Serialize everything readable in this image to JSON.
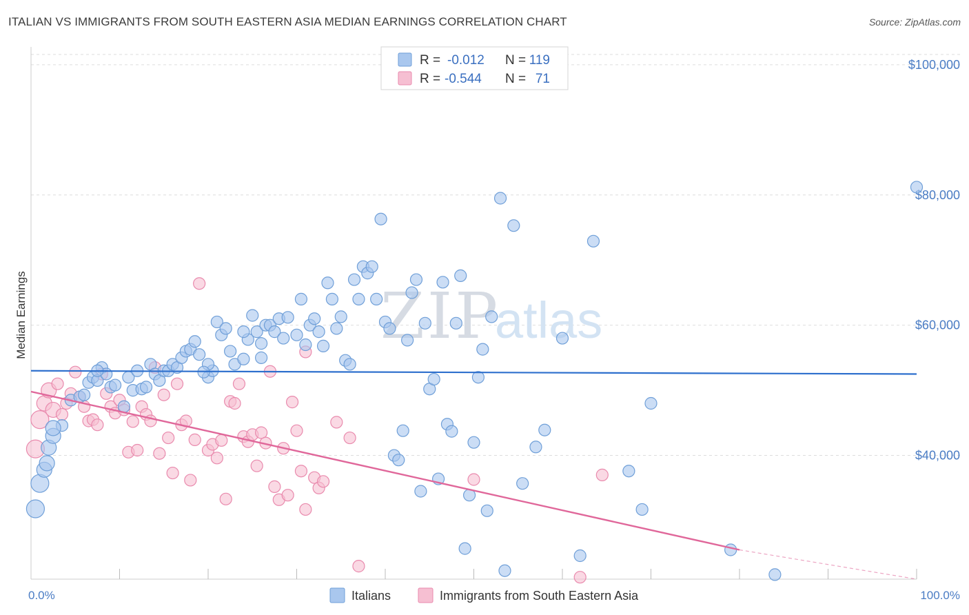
{
  "title": "ITALIAN VS IMMIGRANTS FROM SOUTH EASTERN ASIA MEDIAN EARNINGS CORRELATION CHART",
  "source": "Source: ZipAtlas.com",
  "watermark": {
    "zip": "ZIP",
    "atlas": "atlas"
  },
  "legend_top": {
    "row1": {
      "r_label": "R =",
      "r_value": "-0.012",
      "n_label": "N =",
      "n_value": "119"
    },
    "row2": {
      "r_label": "R =",
      "r_value": "-0.544",
      "n_label": "N =",
      "n_value": "71"
    }
  },
  "colors": {
    "blue_fill": "#a9c7ee",
    "blue_stroke": "#6f9fd8",
    "blue_line": "#2d6fcd",
    "pink_fill": "#f6bfd2",
    "pink_stroke": "#e98aad",
    "pink_line": "#e0679a",
    "axis_text": "#4a7cc4",
    "grid": "#dddddd"
  },
  "chart_data": {
    "type": "scatter",
    "title": "ITALIAN VS IMMIGRANTS FROM SOUTH EASTERN ASIA MEDIAN EARNINGS CORRELATION CHART",
    "xlabel": "",
    "ylabel": "Median Earnings",
    "xlim": [
      0,
      100
    ],
    "ylim": [
      21000,
      102000
    ],
    "x_tick_labels": [
      "0.0%",
      "100.0%"
    ],
    "y_ticks": [
      40000,
      60000,
      80000,
      100000
    ],
    "y_tick_labels": [
      "$40,000",
      "$60,000",
      "$80,000",
      "$100,000"
    ],
    "grid": true,
    "legend_placement": "top-center",
    "series": [
      {
        "name": "Italians",
        "r": -0.012,
        "n": 119,
        "trend": {
          "x0": 0,
          "y0": 53000,
          "x1": 100,
          "y1": 52500
        },
        "points": [
          [
            0.5,
            31800
          ],
          [
            1.0,
            35700
          ],
          [
            1.5,
            37800
          ],
          [
            1.8,
            38800
          ],
          [
            2.0,
            41200
          ],
          [
            2.5,
            43000
          ],
          [
            3.5,
            44600
          ],
          [
            4.5,
            48500
          ],
          [
            5.5,
            49000
          ],
          [
            6.0,
            49300
          ],
          [
            6.5,
            51200
          ],
          [
            7.0,
            52000
          ],
          [
            7.5,
            51500
          ],
          [
            8.0,
            53500
          ],
          [
            8.5,
            52500
          ],
          [
            9.0,
            50500
          ],
          [
            9.5,
            50800
          ],
          [
            10.5,
            47500
          ],
          [
            11.5,
            50000
          ],
          [
            11.0,
            52000
          ],
          [
            12.5,
            50200
          ],
          [
            13.0,
            50500
          ],
          [
            13.5,
            54000
          ],
          [
            14.0,
            52500
          ],
          [
            14.5,
            51500
          ],
          [
            15.0,
            53000
          ],
          [
            15.5,
            53000
          ],
          [
            16.0,
            54000
          ],
          [
            16.5,
            53500
          ],
          [
            17.0,
            55000
          ],
          [
            17.5,
            56000
          ],
          [
            18.0,
            56300
          ],
          [
            18.5,
            57500
          ],
          [
            19.0,
            55500
          ],
          [
            20.0,
            52000
          ],
          [
            20.5,
            53000
          ],
          [
            20.0,
            54000
          ],
          [
            21.0,
            60500
          ],
          [
            21.5,
            58500
          ],
          [
            22.0,
            59500
          ],
          [
            22.5,
            56000
          ],
          [
            23.0,
            54000
          ],
          [
            24.0,
            54800
          ],
          [
            24.5,
            57800
          ],
          [
            24.0,
            59000
          ],
          [
            25.0,
            61500
          ],
          [
            25.5,
            59000
          ],
          [
            26.0,
            57200
          ],
          [
            26.5,
            60000
          ],
          [
            27.0,
            60000
          ],
          [
            27.5,
            59000
          ],
          [
            28.0,
            61000
          ],
          [
            28.5,
            58000
          ],
          [
            29.0,
            61200
          ],
          [
            30.0,
            58500
          ],
          [
            30.5,
            64000
          ],
          [
            31.0,
            57000
          ],
          [
            31.5,
            60000
          ],
          [
            32.0,
            61000
          ],
          [
            32.5,
            59000
          ],
          [
            33.0,
            56800
          ],
          [
            33.5,
            66500
          ],
          [
            34.0,
            64000
          ],
          [
            34.5,
            59500
          ],
          [
            35.0,
            61300
          ],
          [
            35.5,
            54600
          ],
          [
            36.0,
            54000
          ],
          [
            36.5,
            67000
          ],
          [
            37.0,
            64000
          ],
          [
            37.5,
            69000
          ],
          [
            38.0,
            68000
          ],
          [
            38.5,
            69000
          ],
          [
            39.0,
            64000
          ],
          [
            39.5,
            76300
          ],
          [
            40.0,
            60500
          ],
          [
            40.5,
            59500
          ],
          [
            41.0,
            40000
          ],
          [
            41.5,
            39300
          ],
          [
            42.0,
            43800
          ],
          [
            42.5,
            57700
          ],
          [
            43.0,
            65000
          ],
          [
            43.5,
            67000
          ],
          [
            44.0,
            34500
          ],
          [
            44.5,
            60300
          ],
          [
            45.0,
            50200
          ],
          [
            45.5,
            51700
          ],
          [
            46.0,
            36400
          ],
          [
            46.5,
            66600
          ],
          [
            47.0,
            44800
          ],
          [
            47.5,
            43700
          ],
          [
            48.0,
            60300
          ],
          [
            48.5,
            67600
          ],
          [
            49.0,
            25700
          ],
          [
            49.5,
            33900
          ],
          [
            50.0,
            42000
          ],
          [
            50.5,
            52000
          ],
          [
            51.0,
            56300
          ],
          [
            51.5,
            31500
          ],
          [
            52.0,
            61300
          ],
          [
            53.0,
            79500
          ],
          [
            53.5,
            22300
          ],
          [
            54.5,
            75300
          ],
          [
            55.5,
            35700
          ],
          [
            57.0,
            41300
          ],
          [
            58.0,
            43900
          ],
          [
            60.0,
            58000
          ],
          [
            62.0,
            24600
          ],
          [
            63.5,
            72900
          ],
          [
            67.5,
            37600
          ],
          [
            69.0,
            31700
          ],
          [
            70.0,
            48000
          ],
          [
            79.0,
            25500
          ],
          [
            84.0,
            21700
          ],
          [
            100.0,
            81200
          ],
          [
            2.5,
            44200
          ],
          [
            7.5,
            53000
          ],
          [
            12.0,
            53000
          ],
          [
            19.5,
            52800
          ],
          [
            26.0,
            55000
          ]
        ]
      },
      {
        "name": "Immigrants from South Eastern Asia",
        "r": -0.544,
        "n": 71,
        "trend": {
          "x0": 0,
          "y0": 49800,
          "x1": 80,
          "y1": 25500,
          "dash_to_x": 100,
          "dash_to_y": 21000
        },
        "points": [
          [
            0.5,
            41000
          ],
          [
            1.0,
            45500
          ],
          [
            1.5,
            48000
          ],
          [
            2.0,
            50000
          ],
          [
            2.5,
            47000
          ],
          [
            3.0,
            51000
          ],
          [
            3.5,
            46300
          ],
          [
            4.0,
            48000
          ],
          [
            4.5,
            49500
          ],
          [
            5.0,
            52800
          ],
          [
            5.5,
            49000
          ],
          [
            6.0,
            47500
          ],
          [
            6.5,
            45300
          ],
          [
            7.0,
            45500
          ],
          [
            7.5,
            44700
          ],
          [
            8.0,
            52500
          ],
          [
            8.5,
            49500
          ],
          [
            9.0,
            47500
          ],
          [
            9.5,
            46500
          ],
          [
            10.0,
            48500
          ],
          [
            10.5,
            47000
          ],
          [
            11.0,
            40500
          ],
          [
            11.5,
            45200
          ],
          [
            12.0,
            40800
          ],
          [
            12.5,
            47500
          ],
          [
            13.0,
            46300
          ],
          [
            13.5,
            45300
          ],
          [
            14.0,
            53500
          ],
          [
            14.5,
            40300
          ],
          [
            15.0,
            49300
          ],
          [
            15.5,
            42700
          ],
          [
            16.0,
            37300
          ],
          [
            16.5,
            51000
          ],
          [
            17.0,
            44700
          ],
          [
            17.5,
            45300
          ],
          [
            18.0,
            36200
          ],
          [
            18.5,
            42400
          ],
          [
            19.0,
            66400
          ],
          [
            20.0,
            40800
          ],
          [
            20.5,
            41700
          ],
          [
            21.0,
            39600
          ],
          [
            21.5,
            42300
          ],
          [
            22.0,
            33300
          ],
          [
            22.5,
            48300
          ],
          [
            23.0,
            48000
          ],
          [
            23.5,
            51000
          ],
          [
            24.0,
            42900
          ],
          [
            24.5,
            42100
          ],
          [
            25.0,
            43200
          ],
          [
            25.5,
            38400
          ],
          [
            26.0,
            43500
          ],
          [
            26.5,
            41900
          ],
          [
            27.0,
            52900
          ],
          [
            27.5,
            35200
          ],
          [
            28.0,
            33200
          ],
          [
            28.5,
            41100
          ],
          [
            29.0,
            33900
          ],
          [
            29.5,
            48200
          ],
          [
            30.0,
            43800
          ],
          [
            30.5,
            37600
          ],
          [
            31.0,
            31700
          ],
          [
            32.0,
            36600
          ],
          [
            32.5,
            35000
          ],
          [
            33.0,
            36000
          ],
          [
            34.5,
            45100
          ],
          [
            36.0,
            42700
          ],
          [
            37.0,
            23000
          ],
          [
            31.0,
            55900
          ],
          [
            50.0,
            36300
          ],
          [
            64.5,
            37000
          ],
          [
            62.0,
            21300
          ]
        ]
      }
    ]
  },
  "bottom_legend": {
    "item1": "Italians",
    "item2": "Immigrants from South Eastern Asia"
  }
}
